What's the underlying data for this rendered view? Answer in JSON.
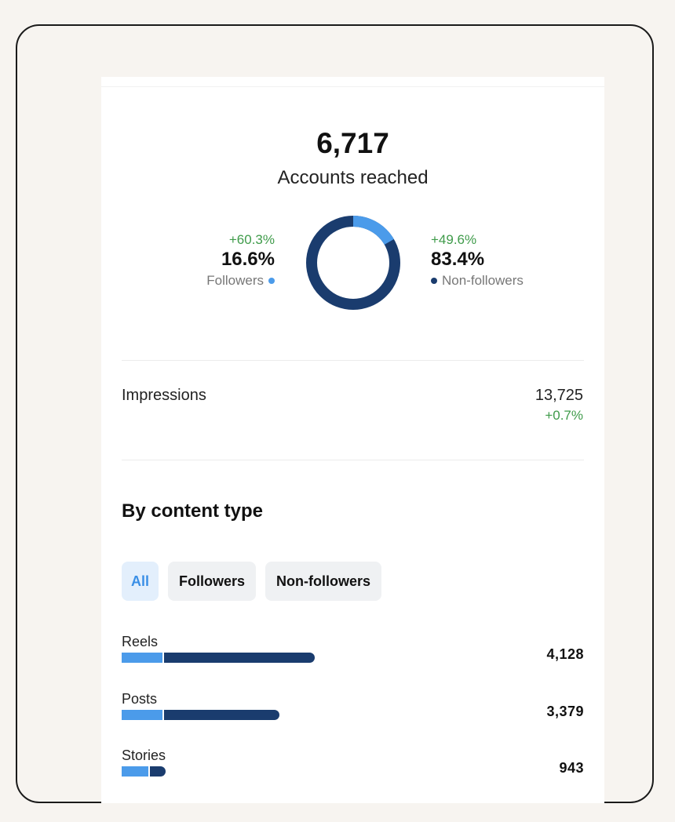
{
  "reach": {
    "total": "6,717",
    "label": "Accounts reached",
    "followers": {
      "change": "+60.3%",
      "percent": "16.6%",
      "label": "Followers",
      "share": 16.6,
      "color": "#4b9bea"
    },
    "non_followers": {
      "change": "+49.6%",
      "percent": "83.4%",
      "label": "Non-followers",
      "share": 83.4,
      "color": "#1a3c6e"
    }
  },
  "impressions": {
    "label": "Impressions",
    "value": "13,725",
    "change": "+0.7%"
  },
  "content_type": {
    "title": "By content type",
    "tabs": [
      {
        "label": "All",
        "active": true
      },
      {
        "label": "Followers",
        "active": false
      },
      {
        "label": "Non-followers",
        "active": false
      }
    ],
    "rows": [
      {
        "label": "Reels",
        "value": "4,128",
        "total": 4128,
        "followers_fraction": 0.21
      },
      {
        "label": "Posts",
        "value": "3,379",
        "total": 3379,
        "followers_fraction": 0.26
      },
      {
        "label": "Stories",
        "value": "943",
        "total": 943,
        "followers_fraction": 0.6
      }
    ]
  }
}
